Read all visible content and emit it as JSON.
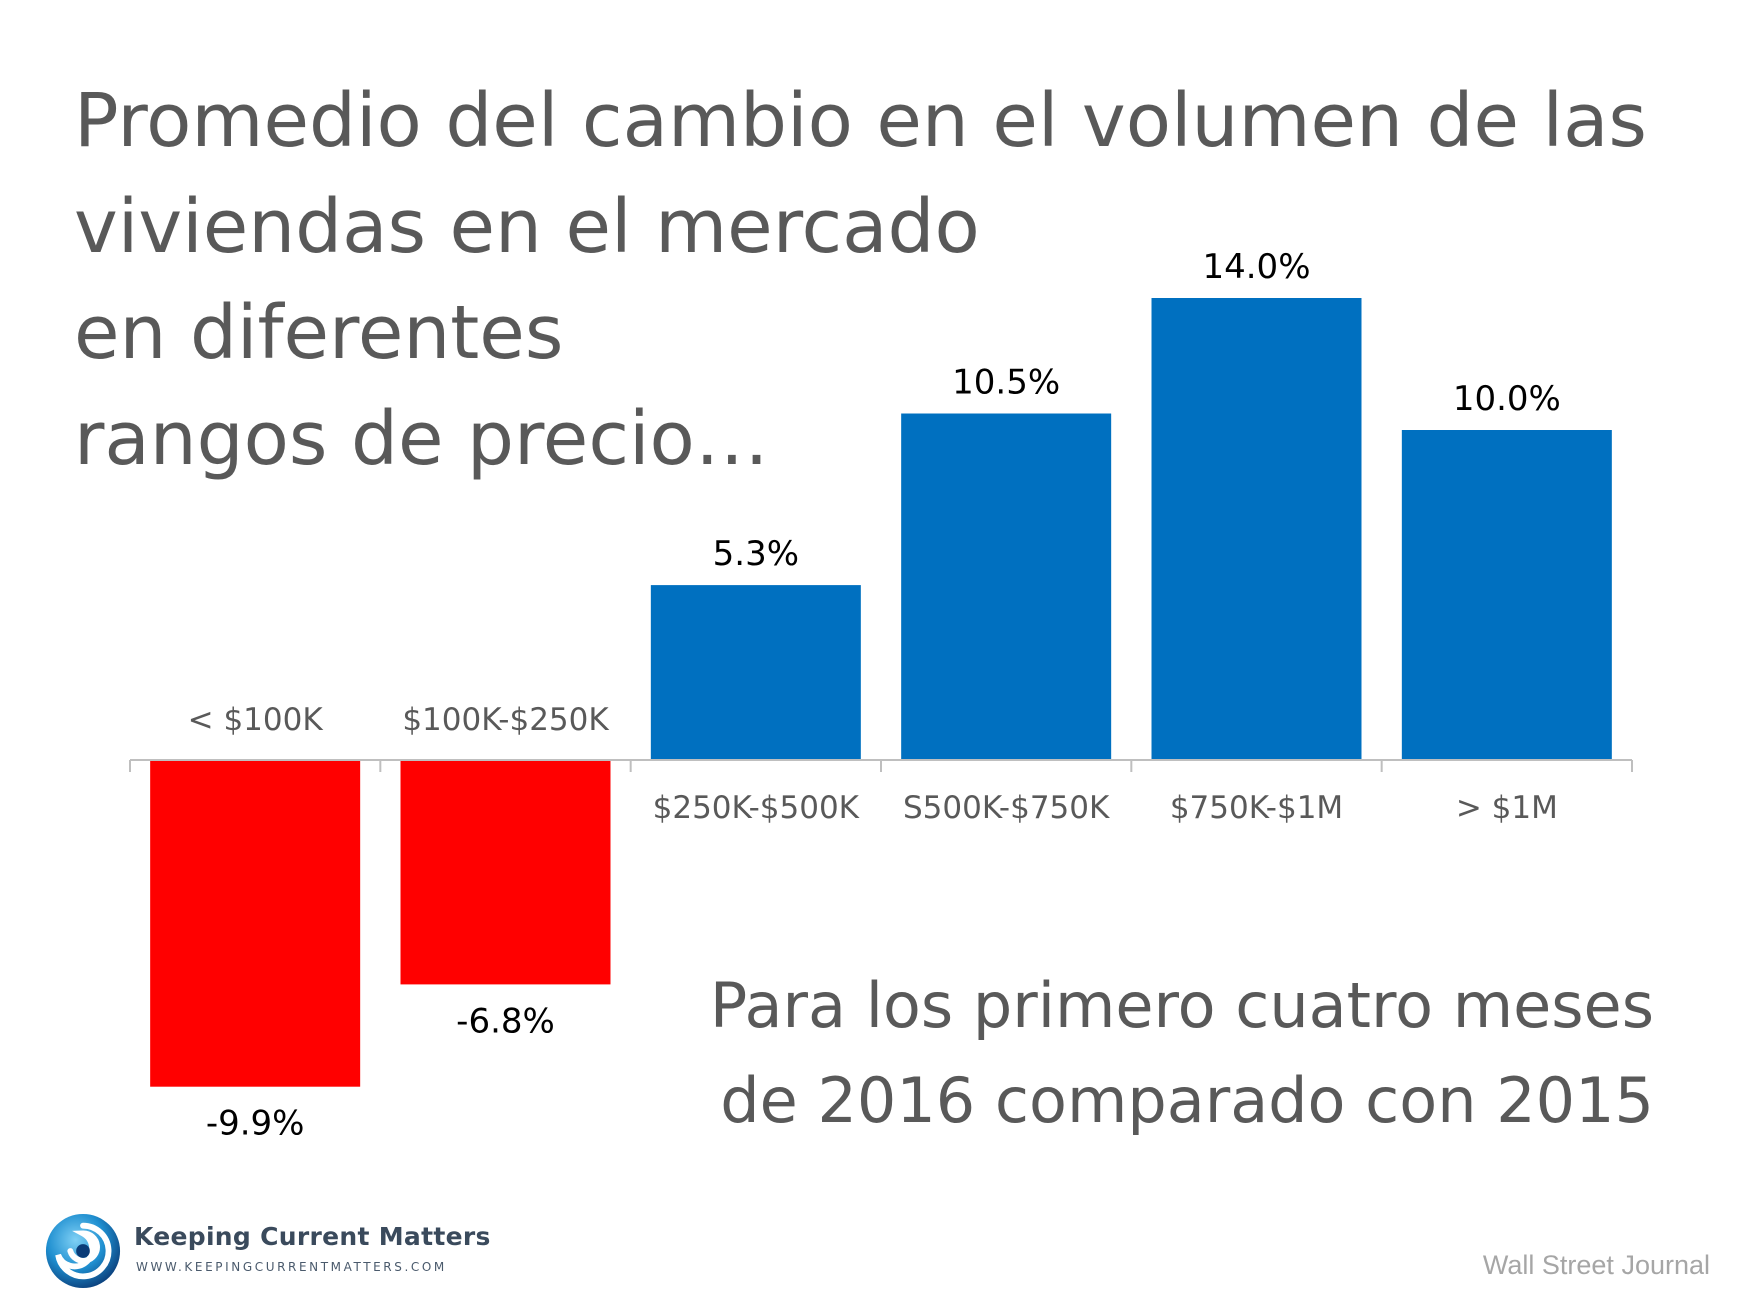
{
  "title_lines": [
    "Promedio del cambio en el volumen de las",
    "viviendas en el mercado",
    "en diferentes",
    "rangos de precio…"
  ],
  "subtitle_lines": [
    "Para los primero cuatro meses",
    "de 2016 comparado con 2015"
  ],
  "logo": {
    "name": "Keeping Current Matters",
    "url": "WWW.KEEPINGCURRENTMATTERS.COM",
    "icon": "swirl-logo-icon"
  },
  "source": "Wall Street Journal",
  "colors": {
    "positive": "#0070C0",
    "negative": "#FF0000",
    "text": "#595959",
    "axis": "#BFBFBF"
  },
  "chart_data": {
    "type": "bar",
    "categories": [
      "< $100K",
      "$100K-$250K",
      "$250K-$500K",
      "S500K-$750K",
      "$750K-$1M",
      "> $1M"
    ],
    "values": [
      -9.9,
      -6.8,
      5.3,
      10.5,
      14.0,
      10.0
    ],
    "data_labels": [
      "-9.9%",
      "-6.8%",
      "5.3%",
      "10.5%",
      "14.0%",
      "10.0%"
    ],
    "title": "",
    "xlabel": "",
    "ylabel": "",
    "grid": false,
    "legend": "none"
  }
}
